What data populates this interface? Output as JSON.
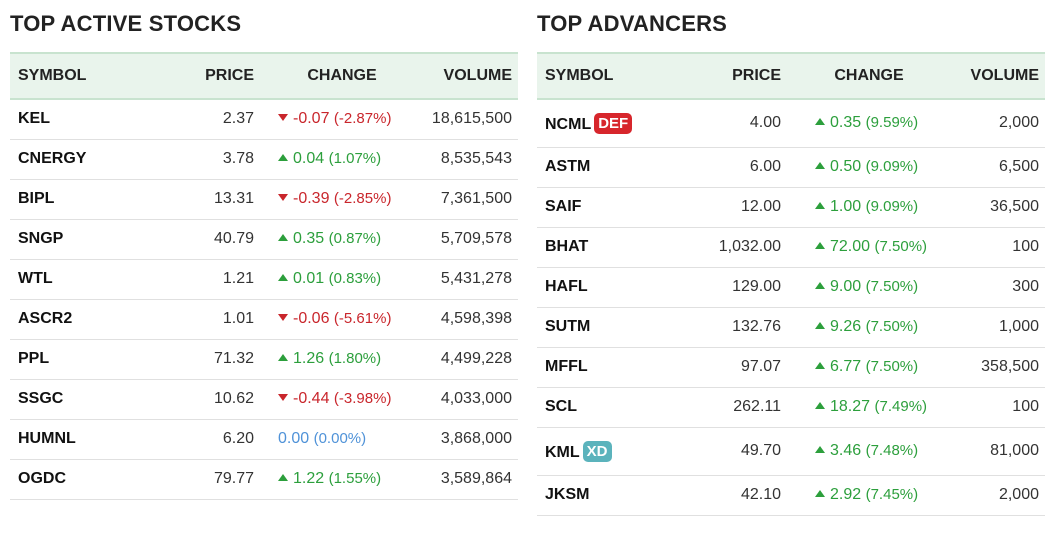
{
  "active": {
    "title": "TOP ACTIVE STOCKS",
    "headers": {
      "symbol": "SYMBOL",
      "price": "PRICE",
      "change": "CHANGE",
      "volume": "VOLUME"
    },
    "rows": [
      {
        "symbol": "KEL",
        "price": "2.37",
        "direction": "down",
        "change": "-0.07",
        "pct": "(-2.87%)",
        "volume": "18,615,500"
      },
      {
        "symbol": "CNERGY",
        "price": "3.78",
        "direction": "up",
        "change": "0.04",
        "pct": "(1.07%)",
        "volume": "8,535,543"
      },
      {
        "symbol": "BIPL",
        "price": "13.31",
        "direction": "down",
        "change": "-0.39",
        "pct": "(-2.85%)",
        "volume": "7,361,500"
      },
      {
        "symbol": "SNGP",
        "price": "40.79",
        "direction": "up",
        "change": "0.35",
        "pct": "(0.87%)",
        "volume": "5,709,578"
      },
      {
        "symbol": "WTL",
        "price": "1.21",
        "direction": "up",
        "change": "0.01",
        "pct": "(0.83%)",
        "volume": "5,431,278"
      },
      {
        "symbol": "ASCR2",
        "price": "1.01",
        "direction": "down",
        "change": "-0.06",
        "pct": "(-5.61%)",
        "volume": "4,598,398"
      },
      {
        "symbol": "PPL",
        "price": "71.32",
        "direction": "up",
        "change": "1.26",
        "pct": "(1.80%)",
        "volume": "4,499,228"
      },
      {
        "symbol": "SSGC",
        "price": "10.62",
        "direction": "down",
        "change": "-0.44",
        "pct": "(-3.98%)",
        "volume": "4,033,000"
      },
      {
        "symbol": "HUMNL",
        "price": "6.20",
        "direction": "flat",
        "change": "0.00",
        "pct": "(0.00%)",
        "volume": "3,868,000"
      },
      {
        "symbol": "OGDC",
        "price": "79.77",
        "direction": "up",
        "change": "1.22",
        "pct": "(1.55%)",
        "volume": "3,589,864"
      }
    ]
  },
  "advancers": {
    "title": "TOP ADVANCERS",
    "headers": {
      "symbol": "SYMBOL",
      "price": "PRICE",
      "change": "CHANGE",
      "volume": "VOLUME"
    },
    "rows": [
      {
        "symbol": "NCML",
        "badge": "DEF",
        "badge_type": "def",
        "price": "4.00",
        "direction": "up",
        "change": "0.35",
        "pct": "(9.59%)",
        "volume": "2,000"
      },
      {
        "symbol": "ASTM",
        "price": "6.00",
        "direction": "up",
        "change": "0.50",
        "pct": "(9.09%)",
        "volume": "6,500"
      },
      {
        "symbol": "SAIF",
        "price": "12.00",
        "direction": "up",
        "change": "1.00",
        "pct": "(9.09%)",
        "volume": "36,500"
      },
      {
        "symbol": "BHAT",
        "price": "1,032.00",
        "direction": "up",
        "change": "72.00",
        "pct": "(7.50%)",
        "volume": "100"
      },
      {
        "symbol": "HAFL",
        "price": "129.00",
        "direction": "up",
        "change": "9.00",
        "pct": "(7.50%)",
        "volume": "300"
      },
      {
        "symbol": "SUTM",
        "price": "132.76",
        "direction": "up",
        "change": "9.26",
        "pct": "(7.50%)",
        "volume": "1,000"
      },
      {
        "symbol": "MFFL",
        "price": "97.07",
        "direction": "up",
        "change": "6.77",
        "pct": "(7.50%)",
        "volume": "358,500"
      },
      {
        "symbol": "SCL",
        "price": "262.11",
        "direction": "up",
        "change": "18.27",
        "pct": "(7.49%)",
        "volume": "100"
      },
      {
        "symbol": "KML",
        "badge": "XD",
        "badge_type": "xd",
        "price": "49.70",
        "direction": "up",
        "change": "3.46",
        "pct": "(7.48%)",
        "volume": "81,000"
      },
      {
        "symbol": "JKSM",
        "price": "42.10",
        "direction": "up",
        "change": "2.92",
        "pct": "(7.45%)",
        "volume": "2,000"
      }
    ]
  },
  "colors": {
    "up": "#2c9f3c",
    "down": "#c9262c",
    "flat": "#4f92d8",
    "header_bg": "#e9f4ec",
    "badge_def": "#d7262c",
    "badge_xd": "#5bb3bc"
  }
}
